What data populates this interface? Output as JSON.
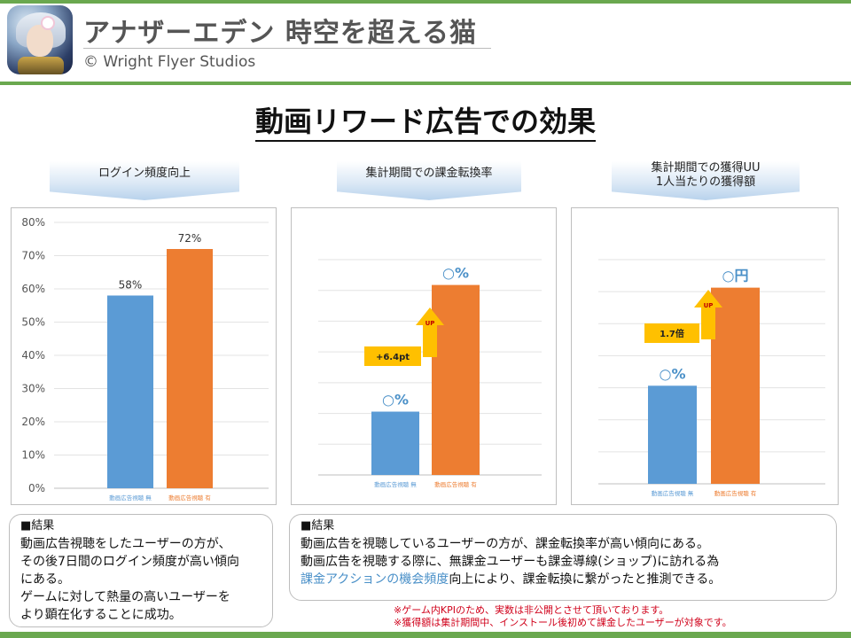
{
  "header": {
    "app_title": "アナザーエデン 時空を超える猫",
    "copyright": "© Wright Flyer Studios"
  },
  "main_title": "動画リワード広告での効果",
  "colors": {
    "accent_green": "#6aa84f",
    "no_view": "#5b9bd5",
    "viewed": "#ed7d31",
    "up_arrow": "#ffc000",
    "percent_label": "#4a90c8",
    "note_red": "#d0021b"
  },
  "panels": [
    {
      "label": "ログイン頻度向上",
      "chart_data": {
        "type": "bar",
        "categories": [
          "動画広告視聴 無",
          "動画広告視聴 有"
        ],
        "values": [
          58,
          72
        ],
        "value_labels": [
          "58%",
          "72%"
        ],
        "ylim": [
          0,
          80
        ],
        "yticks": [
          "0%",
          "10%",
          "20%",
          "30%",
          "40%",
          "50%",
          "60%",
          "70%",
          "80%"
        ],
        "grid": true
      }
    },
    {
      "label": "集計期間での課金転換率",
      "chart_data": {
        "type": "bar",
        "categories": [
          "動画広告視聴 無",
          "動画広告視聴 有"
        ],
        "values": [
          25,
          75
        ],
        "value_labels": [
          "○%",
          "○%"
        ],
        "ylim": [
          0,
          85
        ],
        "grid": true,
        "annotation": {
          "up": "UP",
          "text": "+6.4pt"
        }
      }
    },
    {
      "label": "集計期間での獲得UU\n1人当たりの獲得額",
      "chart_data": {
        "type": "bar",
        "categories": [
          "動画広告視聴 無",
          "動画広告視聴 有"
        ],
        "values": [
          35,
          70
        ],
        "value_labels": [
          "○%",
          "○円"
        ],
        "ylim": [
          0,
          80
        ],
        "grid": true,
        "annotation": {
          "up": "UP",
          "text": "1.7倍"
        }
      }
    }
  ],
  "result_left": {
    "title": "■結果",
    "lines": [
      "動画広告視聴をしたユーザーの方が、",
      "その後7日間のログイン頻度が高い傾向",
      "にある。",
      "ゲームに対して熱量の高いユーザーを",
      "より顕在化することに成功。"
    ]
  },
  "result_right": {
    "title": "■結果",
    "line1": "動画広告を視聴しているユーザーの方が、課金転換率が高い傾向にある。",
    "line2": "動画広告を視聴する際に、無課金ユーザーも課金導線(ショップ)に訪れる為",
    "line3_highlight": "課金アクションの機会頻度",
    "line3_rest": "向上により、課金転換に繋がったと推測できる。"
  },
  "notes": [
    "※ゲーム内KPIのため、実数は非公開とさせて頂いております。",
    "※獲得額は集計期間中、インストール後初めて課金したユーザーが対象です。"
  ]
}
